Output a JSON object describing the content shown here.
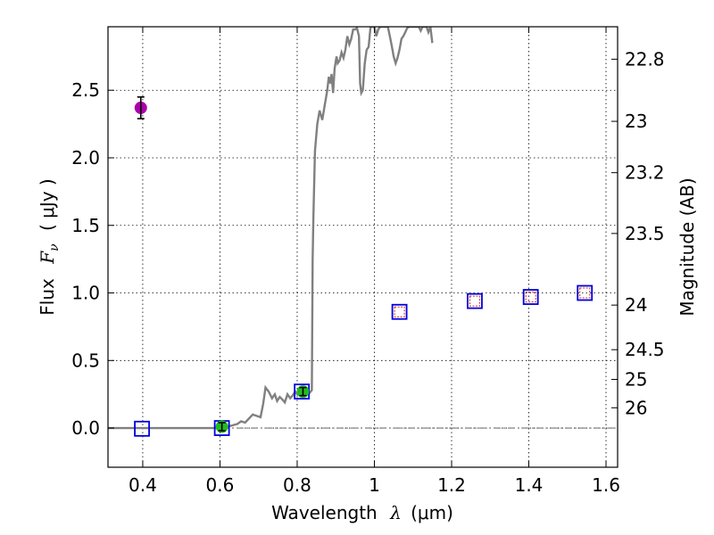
{
  "chart_data": {
    "type": "scatter",
    "xlabel_prefix": "Wavelength",
    "xlabel_symbol": "λ",
    "xlabel_unit": "(μm)",
    "ylabel_prefix": "Flux",
    "ylabel_symbol_base": "F",
    "ylabel_symbol_sub": "ν",
    "ylabel_unit": "( μJy )",
    "y2label": "Magnitude (AB)",
    "xlim": [
      0.31,
      1.63
    ],
    "ylim": [
      -0.29,
      2.97
    ],
    "xticks": [
      0.4,
      0.6,
      0.8,
      1.0,
      1.2,
      1.4,
      1.6
    ],
    "xtick_labels": [
      "0.4",
      "0.6",
      "0.8",
      "1",
      "1.2",
      "1.4",
      "1.6"
    ],
    "yticks": [
      0.0,
      0.5,
      1.0,
      1.5,
      2.0,
      2.5
    ],
    "ytick_labels": [
      "0.0",
      "0.5",
      "1.0",
      "1.5",
      "2.0",
      "2.5"
    ],
    "y2_ticks": [
      {
        "label": "22.8",
        "flux": 2.73
      },
      {
        "label": "23",
        "flux": 2.27
      },
      {
        "label": "23.2",
        "flux": 1.89
      },
      {
        "label": "23.5",
        "flux": 1.44
      },
      {
        "label": "24",
        "flux": 0.91
      },
      {
        "label": "24.5",
        "flux": 0.58
      },
      {
        "label": "25",
        "flux": 0.36
      },
      {
        "label": "26",
        "flux": 0.15
      }
    ],
    "grid": true,
    "zero_line": 0.0,
    "colors": {
      "template": "#808080",
      "observed_ok": "#22bb22",
      "observed_dropout": "#aa00aa",
      "model_box": "#0000dd",
      "model_inner": "#dd2222",
      "errorbar": "#000000"
    },
    "series": [
      {
        "name": "template spectrum",
        "kind": "line",
        "x": [
          0.31,
          0.4,
          0.55,
          0.59,
          0.62,
          0.645,
          0.655,
          0.665,
          0.675,
          0.685,
          0.695,
          0.705,
          0.712,
          0.718,
          0.726,
          0.735,
          0.742,
          0.748,
          0.755,
          0.762,
          0.768,
          0.775,
          0.782,
          0.788,
          0.795,
          0.8,
          0.805,
          0.81,
          0.815,
          0.82,
          0.825,
          0.828,
          0.832,
          0.835,
          0.838,
          0.84,
          0.842,
          0.846,
          0.852,
          0.858,
          0.865,
          0.872,
          0.878,
          0.882,
          0.886,
          0.889,
          0.893,
          0.897,
          0.902,
          0.905,
          0.91,
          0.915,
          0.92,
          0.925,
          0.93,
          0.935,
          0.94,
          0.945,
          0.95,
          0.955,
          0.96,
          0.963,
          0.966,
          0.97,
          0.975,
          0.98,
          0.985,
          0.99,
          0.995,
          1.0,
          1.005,
          1.01,
          1.015,
          1.02,
          1.025,
          1.03,
          1.035,
          1.04,
          1.045,
          1.05,
          1.055,
          1.06,
          1.065,
          1.07,
          1.075,
          1.08,
          1.085,
          1.09,
          1.095,
          1.1,
          1.105,
          1.11,
          1.115,
          1.12,
          1.125,
          1.13,
          1.135,
          1.14,
          1.145,
          1.15
        ],
        "y": [
          0.0,
          0.0,
          0.0,
          0.0,
          0.01,
          0.03,
          0.05,
          0.04,
          0.07,
          0.1,
          0.09,
          0.08,
          0.18,
          0.3,
          0.27,
          0.22,
          0.25,
          0.2,
          0.23,
          0.21,
          0.19,
          0.25,
          0.22,
          0.24,
          0.27,
          0.25,
          0.28,
          0.27,
          0.26,
          0.26,
          0.26,
          0.27,
          0.26,
          0.27,
          0.28,
          1.25,
          1.55,
          2.05,
          2.25,
          2.35,
          2.28,
          2.4,
          2.5,
          2.6,
          2.55,
          2.62,
          2.48,
          2.66,
          2.75,
          2.7,
          2.72,
          2.78,
          2.74,
          2.8,
          2.9,
          2.84,
          2.88,
          2.95,
          2.95,
          2.96,
          2.9,
          2.55,
          2.48,
          2.5,
          2.7,
          2.8,
          2.82,
          2.97,
          2.97,
          2.97,
          2.9,
          2.95,
          2.97,
          2.97,
          2.97,
          2.97,
          2.97,
          2.9,
          2.83,
          2.75,
          2.7,
          2.74,
          2.8,
          2.88,
          2.9,
          2.93,
          2.96,
          2.97,
          2.97,
          2.97,
          2.97,
          2.97,
          2.97,
          2.94,
          2.97,
          2.97,
          2.97,
          2.93,
          2.97,
          2.85
        ]
      },
      {
        "name": "observed flux (detections)",
        "kind": "errorbar",
        "x": [
          0.605,
          0.815
        ],
        "y": [
          0.01,
          0.27
        ],
        "yerr": [
          0.03,
          0.03
        ]
      },
      {
        "name": "observed flux (dropout band)",
        "kind": "errorbar",
        "x": [
          0.395
        ],
        "y": [
          2.37
        ],
        "yerr": [
          0.08
        ]
      },
      {
        "name": "model fluxes",
        "kind": "squares",
        "x": [
          0.398,
          0.605,
          0.812,
          1.065,
          1.26,
          1.405,
          1.545
        ],
        "y": [
          -0.005,
          0.0,
          0.27,
          0.86,
          0.94,
          0.97,
          1.0
        ]
      }
    ]
  }
}
